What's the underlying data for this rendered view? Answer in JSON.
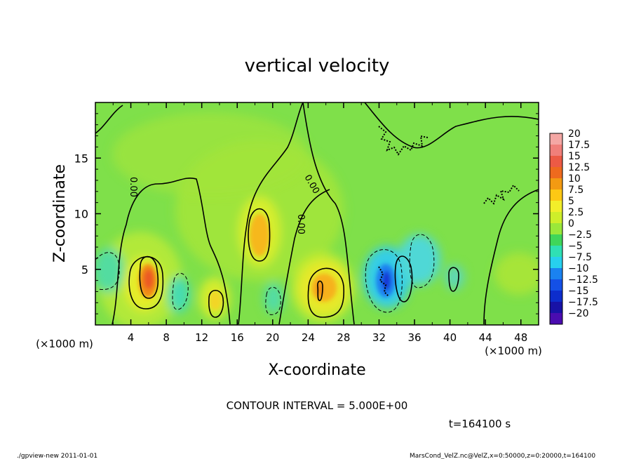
{
  "chart_data": {
    "type": "heatmap",
    "title": "vertical velocity",
    "xlabel": "X-coordinate",
    "ylabel": "Z-coordinate",
    "x_unit_label": "(×1000 m)",
    "y_unit_label": "(×1000 m)",
    "xlim": [
      0,
      50
    ],
    "ylim": [
      0,
      20
    ],
    "x_ticks": [
      "4",
      "8",
      "12",
      "16",
      "20",
      "24",
      "28",
      "32",
      "36",
      "40",
      "44",
      "48"
    ],
    "y_ticks": [
      "5",
      "10",
      "15"
    ],
    "contour_interval_label": "CONTOUR INTERVAL = 5.000E+00",
    "contour_label": "0.00",
    "time_label": "t=164100 s",
    "footer_left": "./gpview-new  2011-01-01",
    "footer_right": "MarsCond_VelZ.nc@VelZ,x=0:50000,z=0:20000,t=164100",
    "colorbar": {
      "labels": [
        "20",
        "17.5",
        "15",
        "12.5",
        "10",
        "7.5",
        "5",
        "2.5",
        "0",
        "−2.5",
        "−5",
        "−7.5",
        "−10",
        "−12.5",
        "−15",
        "−17.5",
        "−20"
      ],
      "colors": [
        "#f4a7a4",
        "#f07f7a",
        "#ec5a45",
        "#ee6a1e",
        "#f39a12",
        "#fdc814",
        "#f2ee2a",
        "#ceee2a",
        "#9ae83a",
        "#3fd65a",
        "#2fe0b4",
        "#27d0ee",
        "#1a82f0",
        "#1450e6",
        "#0d2dcc",
        "#1812a6",
        "#4a0cb0"
      ]
    },
    "cells": [
      {
        "x": 6,
        "z": 4,
        "value": 12.5
      },
      {
        "x": 6,
        "z": 3.5,
        "value": 10
      },
      {
        "x": 18.5,
        "z": 8,
        "value": 7.5
      },
      {
        "x": 25,
        "z": 3.5,
        "value": 10
      },
      {
        "x": 13.5,
        "z": 2,
        "value": 5
      },
      {
        "x": 33,
        "z": 4,
        "value": -15
      },
      {
        "x": 34.5,
        "z": 5.5,
        "value": -5
      },
      {
        "x": 10,
        "z": 3,
        "value": -5
      },
      {
        "x": 21,
        "z": 3,
        "value": -2.5
      },
      {
        "x": 1.5,
        "z": 5,
        "value": -2.5
      },
      {
        "x": 17,
        "z": 14,
        "value": 5
      },
      {
        "x": 45.5,
        "z": 4,
        "value": 2.5
      }
    ]
  }
}
